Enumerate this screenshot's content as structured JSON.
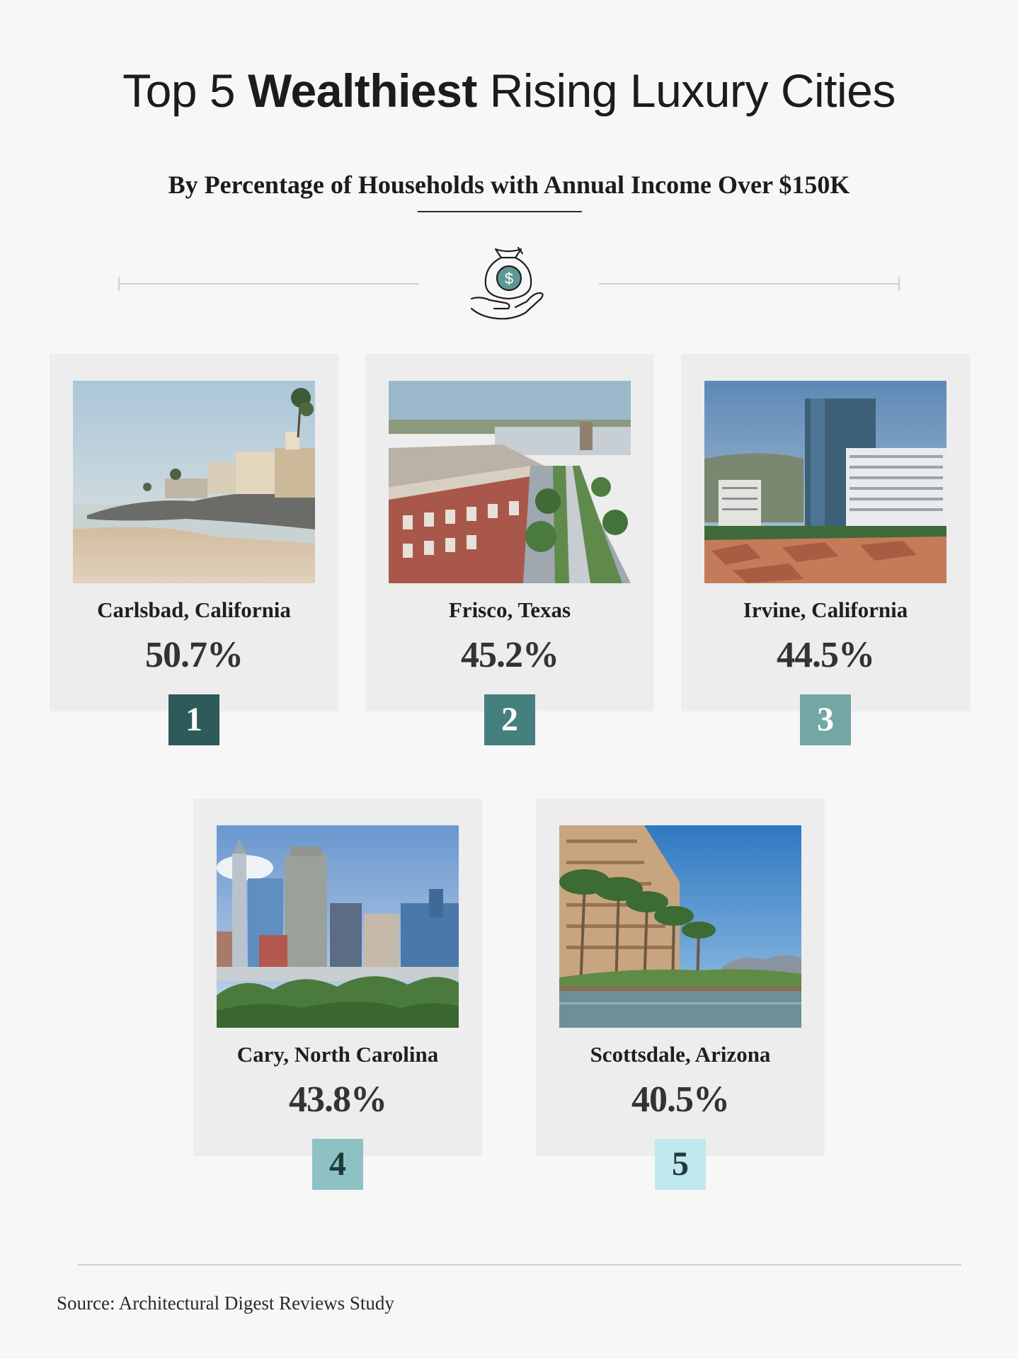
{
  "header": {
    "title_pre": "Top 5 ",
    "title_bold": "Wealthiest",
    "title_post": " Rising Luxury Cities",
    "subtitle": "By Percentage of Households with Annual Income Over $150K",
    "icon": "money-bag-hand-icon"
  },
  "cities": [
    {
      "rank": "1",
      "name": "Carlsbad, California",
      "percent": "50.7%",
      "rank_color": "#2e5a59",
      "rank_text_color": "#ffffff",
      "photo": "beach-coastline"
    },
    {
      "rank": "2",
      "name": "Frisco, Texas",
      "percent": "45.2%",
      "rank_color": "#46807e",
      "rank_text_color": "#ffffff",
      "photo": "urban-street"
    },
    {
      "rank": "3",
      "name": "Irvine, California",
      "percent": "44.5%",
      "rank_color": "#72a7a6",
      "rank_text_color": "#ffffff",
      "photo": "office-towers"
    },
    {
      "rank": "4",
      "name": "Cary, North Carolina",
      "percent": "43.8%",
      "rank_color": "#8ec1c3",
      "rank_text_color": "#1f3a3a",
      "photo": "city-skyline"
    },
    {
      "rank": "5",
      "name": "Scottsdale, Arizona",
      "percent": "40.5%",
      "rank_color": "#bfe9ee",
      "rank_text_color": "#1f3a3a",
      "photo": "palm-resort"
    }
  ],
  "footer": {
    "source": "Source: Architectural Digest Reviews Study"
  },
  "colors": {
    "background": "#f7f7f8",
    "card": "#ededee",
    "accent": "#2e5a59"
  }
}
